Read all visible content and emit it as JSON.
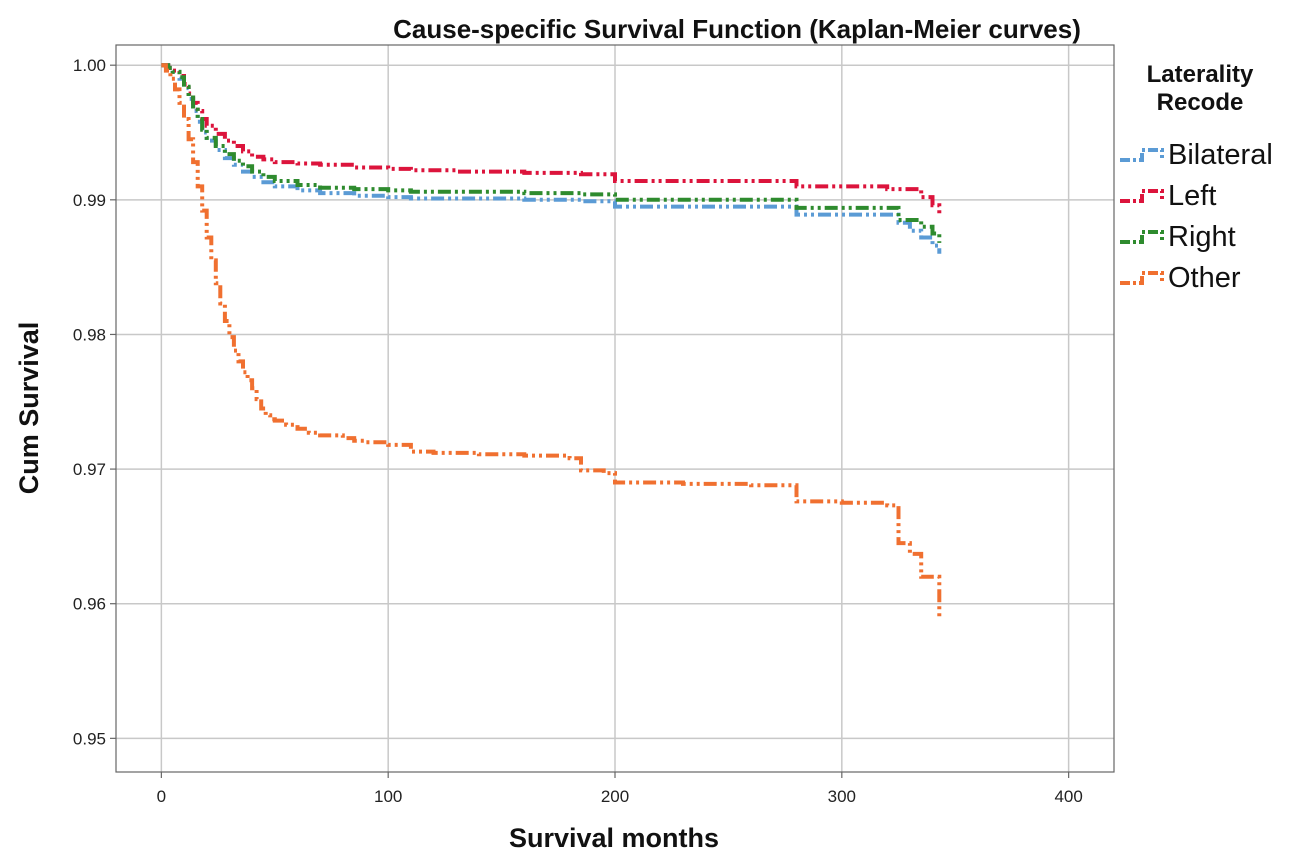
{
  "chart_data": {
    "type": "line",
    "step": true,
    "title": "Cause-specific Survival Function (Kaplan-Meier curves)",
    "xlabel": "Survival months",
    "ylabel": "Cum Survival",
    "xlim": [
      -20,
      420
    ],
    "ylim": [
      0.9475,
      1.0015
    ],
    "xticks": [
      0,
      100,
      200,
      300,
      400
    ],
    "xtick_labels": [
      "0",
      "100",
      "200",
      "300",
      "400"
    ],
    "yticks": [
      0.95,
      0.96,
      0.97,
      0.98,
      0.99,
      1.0
    ],
    "ytick_labels": [
      "0.95",
      "0.96",
      "0.97",
      "0.98",
      "0.99",
      "1.00"
    ],
    "grid": true,
    "legend": {
      "title": "Laterality\nRecode",
      "title_lines": [
        "Laterality",
        "Recode"
      ],
      "placement": "right"
    },
    "series": [
      {
        "name": "Bilateral",
        "color": "#5b9bd5",
        "x": [
          0,
          3,
          5,
          8,
          10,
          12,
          14,
          16,
          18,
          20,
          24,
          28,
          32,
          36,
          40,
          45,
          50,
          60,
          70,
          85,
          100,
          110,
          130,
          160,
          185,
          200,
          230,
          260,
          280,
          310,
          320,
          325,
          330,
          335,
          340,
          343
        ],
        "y": [
          1.0,
          0.9998,
          0.9995,
          0.999,
          0.9983,
          0.9975,
          0.9966,
          0.9958,
          0.995,
          0.9944,
          0.9937,
          0.9931,
          0.9926,
          0.9921,
          0.9917,
          0.9913,
          0.991,
          0.9907,
          0.9905,
          0.9903,
          0.9902,
          0.9901,
          0.9901,
          0.99,
          0.9899,
          0.9895,
          0.9895,
          0.9895,
          0.9889,
          0.9889,
          0.9889,
          0.9883,
          0.9877,
          0.9872,
          0.9866,
          0.986
        ]
      },
      {
        "name": "Left",
        "color": "#dc143c",
        "x": [
          0,
          3,
          5,
          8,
          10,
          12,
          14,
          16,
          18,
          20,
          24,
          28,
          32,
          36,
          40,
          45,
          50,
          60,
          70,
          85,
          100,
          110,
          130,
          160,
          185,
          200,
          230,
          260,
          280,
          310,
          320,
          335,
          340,
          343
        ],
        "y": [
          1.0,
          0.9998,
          0.9996,
          0.9992,
          0.9986,
          0.9979,
          0.9972,
          0.9966,
          0.996,
          0.9955,
          0.9949,
          0.9944,
          0.994,
          0.9936,
          0.9932,
          0.993,
          0.9928,
          0.9927,
          0.9926,
          0.9924,
          0.9923,
          0.9922,
          0.9921,
          0.992,
          0.9919,
          0.9914,
          0.9914,
          0.9914,
          0.991,
          0.991,
          0.9908,
          0.9902,
          0.9896,
          0.989
        ]
      },
      {
        "name": "Right",
        "color": "#2e8b2e",
        "x": [
          0,
          3,
          5,
          8,
          10,
          12,
          14,
          16,
          18,
          20,
          24,
          28,
          32,
          36,
          40,
          45,
          50,
          60,
          70,
          85,
          100,
          110,
          130,
          160,
          185,
          200,
          230,
          260,
          280,
          310,
          325,
          335,
          340,
          343
        ],
        "y": [
          1.0,
          0.9998,
          0.9995,
          0.9991,
          0.9984,
          0.9976,
          0.9967,
          0.996,
          0.9952,
          0.9946,
          0.994,
          0.9934,
          0.9929,
          0.9925,
          0.9921,
          0.9917,
          0.9914,
          0.9911,
          0.9909,
          0.9908,
          0.9907,
          0.9906,
          0.9906,
          0.9905,
          0.9904,
          0.99,
          0.99,
          0.99,
          0.9894,
          0.9894,
          0.9885,
          0.988,
          0.9875,
          0.9868
        ]
      },
      {
        "name": "Other",
        "color": "#f07030",
        "x": [
          0,
          2,
          4,
          6,
          8,
          10,
          12,
          14,
          16,
          18,
          20,
          22,
          24,
          26,
          28,
          30,
          32,
          34,
          36,
          38,
          40,
          42,
          44,
          46,
          48,
          50,
          55,
          60,
          65,
          70,
          80,
          85,
          90,
          100,
          110,
          120,
          140,
          160,
          180,
          185,
          195,
          200,
          230,
          260,
          280,
          300,
          320,
          325,
          330,
          335,
          343
        ],
        "y": [
          1.0,
          0.9996,
          0.999,
          0.9982,
          0.9972,
          0.996,
          0.9945,
          0.9928,
          0.991,
          0.9892,
          0.9872,
          0.9855,
          0.9838,
          0.9823,
          0.981,
          0.9798,
          0.9788,
          0.978,
          0.9772,
          0.9766,
          0.976,
          0.9752,
          0.9745,
          0.974,
          0.9737,
          0.9736,
          0.9733,
          0.973,
          0.9727,
          0.9725,
          0.9723,
          0.9721,
          0.972,
          0.9718,
          0.9713,
          0.9712,
          0.9711,
          0.971,
          0.9708,
          0.9699,
          0.9697,
          0.969,
          0.9689,
          0.9688,
          0.9676,
          0.9675,
          0.9673,
          0.9645,
          0.9637,
          0.962,
          0.959
        ]
      }
    ]
  }
}
